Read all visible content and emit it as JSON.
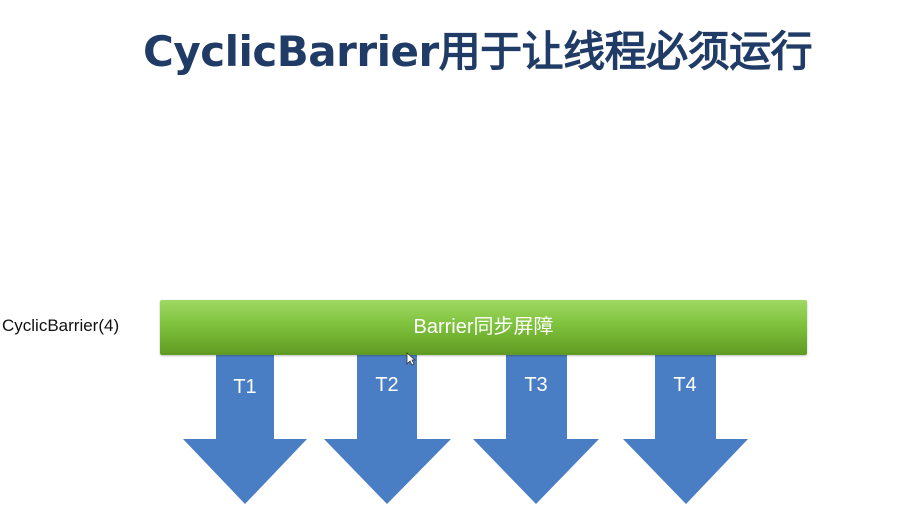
{
  "title": "CyclicBarrier用于让线程必须运行",
  "barrier": {
    "caption": "CyclicBarrier(4)",
    "label": "Barrier同步屏障",
    "color": "#7fc23d"
  },
  "arrows": {
    "color": "#4a7ec4",
    "items": [
      {
        "label": "T1"
      },
      {
        "label": "T2"
      },
      {
        "label": "T3"
      },
      {
        "label": "T4"
      }
    ]
  },
  "cursor_icon": "mouse-pointer-icon"
}
